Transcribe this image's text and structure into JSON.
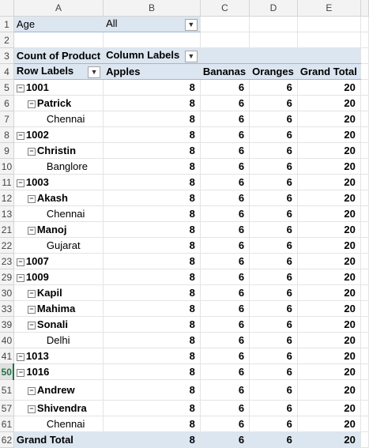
{
  "columns": [
    "A",
    "B",
    "C",
    "D",
    "E"
  ],
  "filter": {
    "label": "Age",
    "value": "All"
  },
  "pivot_header": {
    "count_label": "Count of Product",
    "col_labels": "Column Labels"
  },
  "columns_row": {
    "row_labels": "Row Labels",
    "c1": "Apples",
    "c2": "Bananas",
    "c3": "Oranges",
    "c4": "Grand Total"
  },
  "rows": [
    {
      "rownum": "5",
      "label": "1001",
      "level": 0,
      "vals": [
        "8",
        "6",
        "6",
        "20"
      ]
    },
    {
      "rownum": "6",
      "label": "Patrick",
      "level": 1,
      "vals": [
        "8",
        "6",
        "6",
        "20"
      ]
    },
    {
      "rownum": "7",
      "label": "Chennai",
      "level": 2,
      "vals": [
        "8",
        "6",
        "6",
        "20"
      ]
    },
    {
      "rownum": "8",
      "label": "1002",
      "level": 0,
      "vals": [
        "8",
        "6",
        "6",
        "20"
      ]
    },
    {
      "rownum": "9",
      "label": "Christin",
      "level": 1,
      "vals": [
        "8",
        "6",
        "6",
        "20"
      ]
    },
    {
      "rownum": "10",
      "label": "Banglore",
      "level": 2,
      "vals": [
        "8",
        "6",
        "6",
        "20"
      ]
    },
    {
      "rownum": "11",
      "label": "1003",
      "level": 0,
      "vals": [
        "8",
        "6",
        "6",
        "20"
      ]
    },
    {
      "rownum": "12",
      "label": "Akash",
      "level": 1,
      "vals": [
        "8",
        "6",
        "6",
        "20"
      ]
    },
    {
      "rownum": "13",
      "label": "Chennai",
      "level": 2,
      "vals": [
        "8",
        "6",
        "6",
        "20"
      ]
    },
    {
      "rownum": "21",
      "label": "Manoj",
      "level": 1,
      "vals": [
        "8",
        "6",
        "6",
        "20"
      ]
    },
    {
      "rownum": "22",
      "label": "Gujarat",
      "level": 2,
      "vals": [
        "8",
        "6",
        "6",
        "20"
      ]
    },
    {
      "rownum": "23",
      "label": "1007",
      "level": 0,
      "vals": [
        "8",
        "6",
        "6",
        "20"
      ]
    },
    {
      "rownum": "29",
      "label": "1009",
      "level": 0,
      "vals": [
        "8",
        "6",
        "6",
        "20"
      ]
    },
    {
      "rownum": "30",
      "label": "Kapil",
      "level": 1,
      "vals": [
        "8",
        "6",
        "6",
        "20"
      ]
    },
    {
      "rownum": "33",
      "label": "Mahima",
      "level": 1,
      "vals": [
        "8",
        "6",
        "6",
        "20"
      ]
    },
    {
      "rownum": "39",
      "label": "Sonali",
      "level": 1,
      "vals": [
        "8",
        "6",
        "6",
        "20"
      ]
    },
    {
      "rownum": "40",
      "label": "Delhi",
      "level": 2,
      "vals": [
        "8",
        "6",
        "6",
        "20"
      ]
    },
    {
      "rownum": "41",
      "label": "1013",
      "level": 0,
      "vals": [
        "8",
        "6",
        "6",
        "20"
      ]
    },
    {
      "rownum": "50",
      "label": "1016",
      "level": 0,
      "vals": [
        "8",
        "6",
        "6",
        "20"
      ],
      "active": true
    },
    {
      "rownum": "51",
      "label": "Andrew",
      "level": 1,
      "vals": [
        "8",
        "6",
        "6",
        "20"
      ]
    },
    {
      "rownum": "57",
      "label": "Shivendra",
      "level": 1,
      "vals": [
        "8",
        "6",
        "6",
        "20"
      ]
    },
    {
      "rownum": "61",
      "label": "Chennai",
      "level": 2,
      "vals": [
        "8",
        "6",
        "6",
        "20"
      ]
    }
  ],
  "grand_total": {
    "rownum": "62",
    "label": "Grand Total",
    "vals": [
      "8",
      "6",
      "6",
      "20"
    ]
  },
  "icons": {
    "dropdown": "dropdown-arrow-icon",
    "collapse": "collapse-minus-icon"
  }
}
